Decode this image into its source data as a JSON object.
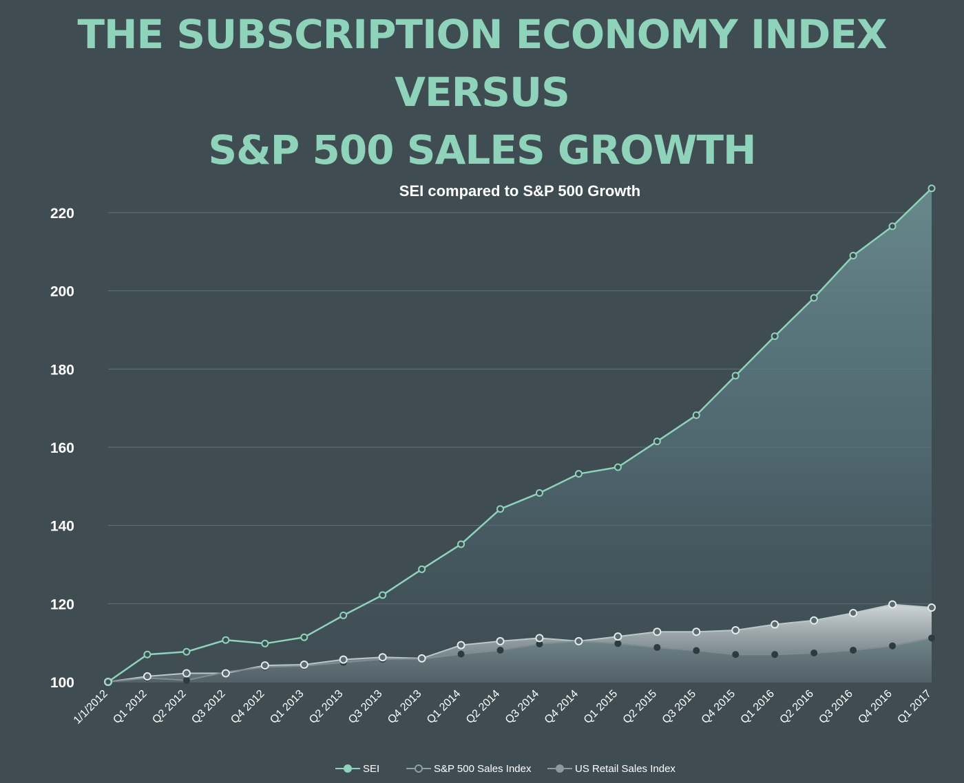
{
  "page": {
    "title_line1": "THE SUBSCRIPTION ECONOMY INDEX VERSUS",
    "title_line2": "S&P 500 SALES GROWTH"
  },
  "colors": {
    "background": "#3f4d53",
    "title": "#8fd3bb",
    "sei": "#8fd3bb",
    "sp500": "#b8c9c9",
    "retail": "#8e9aa0"
  },
  "chart_data": {
    "type": "area",
    "title": "SEI compared to S&P 500 Growth",
    "ylim": [
      100,
      225
    ],
    "yticks": [
      100,
      120,
      140,
      160,
      180,
      200,
      220
    ],
    "grid": true,
    "legend_position": "bottom",
    "categories": [
      "1/1/2012",
      "Q1 2012",
      "Q2 2012",
      "Q3 2012",
      "Q4 2012",
      "Q1 2013",
      "Q2 2013",
      "Q3 2013",
      "Q4 2013",
      "Q1 2014",
      "Q2 2014",
      "Q3 2014",
      "Q4 2014",
      "Q1 2015",
      "Q2 2015",
      "Q3 2015",
      "Q4 2015",
      "Q1 2016",
      "Q2 2016",
      "Q3 2016",
      "Q4 2016",
      "Q1  2017"
    ],
    "series": [
      {
        "name": "SEI",
        "values": [
          100,
          107,
          107.7,
          110.7,
          109.8,
          111.4,
          117,
          122.2,
          128.8,
          135.2,
          144.2,
          148.3,
          153.2,
          154.9,
          161.5,
          168.2,
          178.3,
          188.4,
          198.2,
          209,
          216.5,
          226.2
        ]
      },
      {
        "name": "S&P 500 Sales Index",
        "values": [
          100,
          101.4,
          102.2,
          102.2,
          104.2,
          104.4,
          105.7,
          106.3,
          106,
          109.4,
          110.4,
          111.2,
          110.4,
          111.6,
          112.8,
          112.8,
          113.2,
          114.7,
          115.7,
          117.6,
          119.8,
          119
        ]
      },
      {
        "name": "US Retail Sales Index",
        "values": [
          100,
          101,
          100.4,
          102.5,
          103.8,
          104.1,
          105,
          105.8,
          105.9,
          107.1,
          108.1,
          109.7,
          110.4,
          109.8,
          108.8,
          108,
          107,
          107,
          107.4,
          108.1,
          109.2,
          111.2
        ]
      }
    ]
  }
}
